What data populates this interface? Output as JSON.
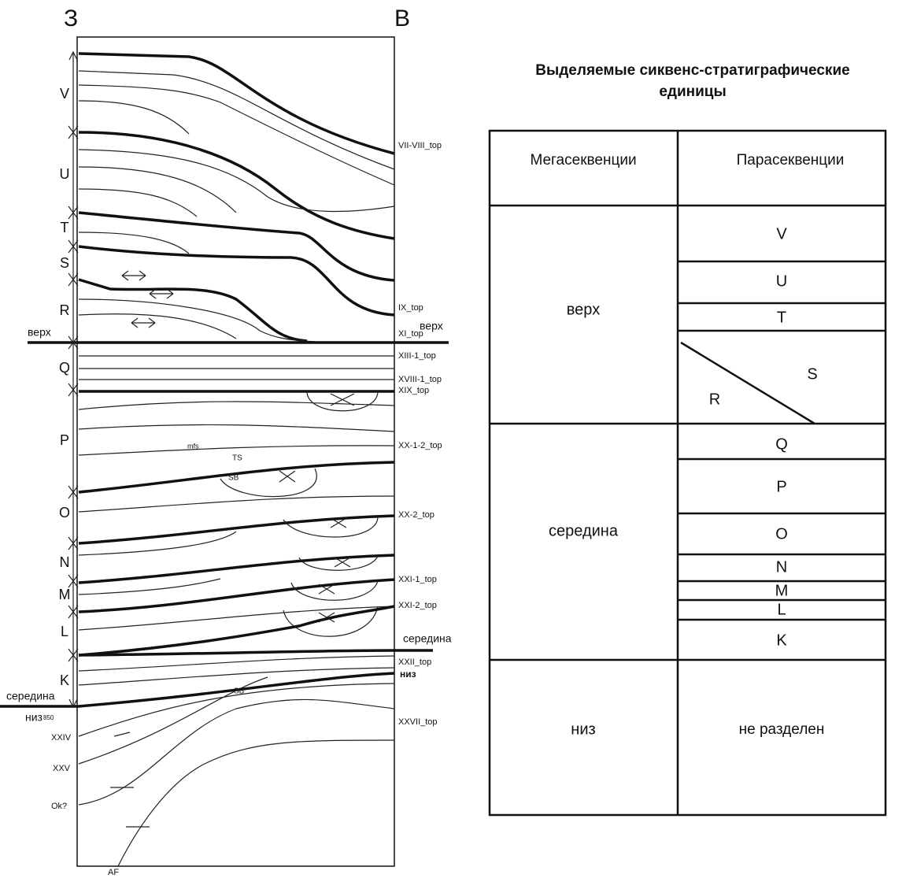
{
  "section": {
    "west_label": "З",
    "east_label": "В",
    "units": [
      "V",
      "U",
      "T",
      "S",
      "R",
      "Q",
      "P",
      "O",
      "N",
      "M",
      "L",
      "K"
    ],
    "horizons": [
      "VII-VIII_top",
      "IX_top",
      "XI_top",
      "XIII-1_top",
      "XVIII-1_top",
      "XIX_top",
      "XX-1-2_top",
      "XX-2_top",
      "XXI-1_top",
      "XXI-2_top",
      "XXII_top",
      "XXVII_top"
    ],
    "boundaries": [
      "верх",
      "верх",
      "середина",
      "середина",
      "низ",
      "низ"
    ],
    "annotations": [
      "850",
      "XXIV",
      "XXV",
      "Ok?",
      "AF",
      "mfs",
      "TS",
      "SB",
      "SB"
    ]
  },
  "table": {
    "title": [
      "Выделяемые сиквенс-стратиграфические",
      "единицы"
    ],
    "headers": [
      "Мегасеквенции",
      "Парасеквенции"
    ],
    "groups": [
      {
        "name": "верх",
        "items": [
          "V",
          "U",
          "T"
        ],
        "split": [
          "R",
          "S"
        ]
      },
      {
        "name": "середина",
        "items": [
          "Q",
          "P",
          "O",
          "N",
          "M",
          "L",
          "K"
        ]
      },
      {
        "name": "низ",
        "items": [
          "не разделен"
        ]
      }
    ]
  }
}
